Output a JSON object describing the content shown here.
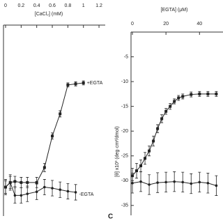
{
  "chart_data": [
    {
      "type": "line",
      "x_label": "[CaCl₂] (mM)",
      "xlim": [
        0,
        1.28
      ],
      "xticks": [
        0,
        0.2,
        0.4,
        0.6,
        0.8,
        1,
        1.2
      ],
      "ylim": [
        -37,
        0
      ],
      "series": [
        {
          "name": "+EGTA",
          "color": "#222",
          "marker": "square",
          "x": [
            0,
            0.06,
            0.12,
            0.2,
            0.28,
            0.4,
            0.5,
            0.6,
            0.7,
            0.8,
            0.9,
            1.0
          ],
          "values": [
            -31.4,
            -30.5,
            -30.3,
            -30.5,
            -30.5,
            -30.5,
            -27.6,
            -21.5,
            -17.2,
            -11.6,
            -11.4,
            -11.2
          ],
          "errors": [
            1.2,
            1.2,
            1,
            1,
            1,
            1,
            0.8,
            0.6,
            0.6,
            0.4,
            0.4,
            0.4
          ]
        },
        {
          "name": "-EGTA",
          "color": "#222",
          "marker": "circle",
          "x": [
            0,
            0.06,
            0.12,
            0.2,
            0.28,
            0.4,
            0.5,
            0.6,
            0.7,
            0.8,
            0.9
          ],
          "values": [
            -31.4,
            -30.5,
            -33,
            -33,
            -32.7,
            -32.3,
            -31.4,
            -31.6,
            -31.9,
            -32.2,
            -32.4
          ],
          "errors": [
            1.5,
            1.5,
            1.5,
            1.5,
            1.5,
            1.5,
            1.5,
            1.5,
            1.5,
            1.5,
            1.5
          ]
        }
      ]
    },
    {
      "type": "line",
      "x_label": "[EGTA] (μM)",
      "y_label": "[θ] x10³ (deg·cm²/dmol)",
      "panel_label": "C",
      "xlim": [
        0,
        54
      ],
      "xticks": [
        0,
        20,
        40
      ],
      "ylim": [
        -37,
        0
      ],
      "yticks": [
        -35,
        -30,
        -25,
        -20,
        -15,
        -10,
        -5
      ],
      "series": [
        {
          "color": "#222",
          "marker": "square",
          "x": [
            0,
            2.5,
            5,
            7.5,
            10,
            12.5,
            15,
            17.5,
            20,
            22.5,
            25,
            27.5,
            30,
            35,
            40,
            45,
            50
          ],
          "values": [
            -29,
            -28,
            -27,
            -25.5,
            -24,
            -22,
            -19.5,
            -17.5,
            -16,
            -15,
            -14,
            -13.3,
            -13,
            -12.6,
            -12.5,
            -12.5,
            -12.5
          ],
          "errors": [
            1.5,
            1.5,
            1.2,
            1.2,
            1,
            1,
            0.8,
            0.8,
            0.6,
            0.6,
            0.5,
            0.5,
            0.5,
            0.5,
            0.5,
            0.5,
            0.5
          ]
        },
        {
          "color": "#222",
          "marker": "circle",
          "x": [
            0,
            5,
            10,
            15,
            20,
            25,
            30,
            35,
            40,
            45,
            50
          ],
          "values": [
            -30.5,
            -30.2,
            -30.8,
            -30.4,
            -30.3,
            -30.2,
            -30.3,
            -30.6,
            -30.3,
            -30.5,
            -31
          ],
          "errors": [
            2,
            2,
            2,
            2,
            2,
            2,
            2,
            2,
            2,
            2,
            2
          ]
        }
      ]
    }
  ]
}
